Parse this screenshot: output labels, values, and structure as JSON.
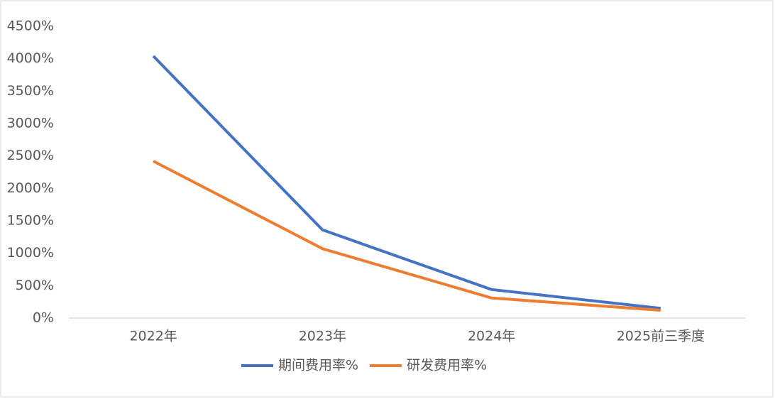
{
  "chart_data": {
    "type": "line",
    "categories": [
      "2022年",
      "2023年",
      "2024年",
      "2025前三季度"
    ],
    "series": [
      {
        "name": "期间费用率%",
        "color": "#4472c4",
        "values": [
          4040,
          1360,
          440,
          150
        ]
      },
      {
        "name": "研发费用率%",
        "color": "#ed7d31",
        "values": [
          2420,
          1070,
          310,
          120
        ]
      }
    ],
    "ylim": [
      0,
      4500
    ],
    "yticks": [
      {
        "value": 0,
        "label": "0%"
      },
      {
        "value": 500,
        "label": "500%"
      },
      {
        "value": 1000,
        "label": "1000%"
      },
      {
        "value": 1500,
        "label": "1500%"
      },
      {
        "value": 2000,
        "label": "2000%"
      },
      {
        "value": 2500,
        "label": "2500%"
      },
      {
        "value": 3000,
        "label": "3000%"
      },
      {
        "value": 3500,
        "label": "3500%"
      },
      {
        "value": 4000,
        "label": "4000%"
      },
      {
        "value": 4500,
        "label": "4500%"
      }
    ],
    "grid": false,
    "legend": "bottom"
  }
}
